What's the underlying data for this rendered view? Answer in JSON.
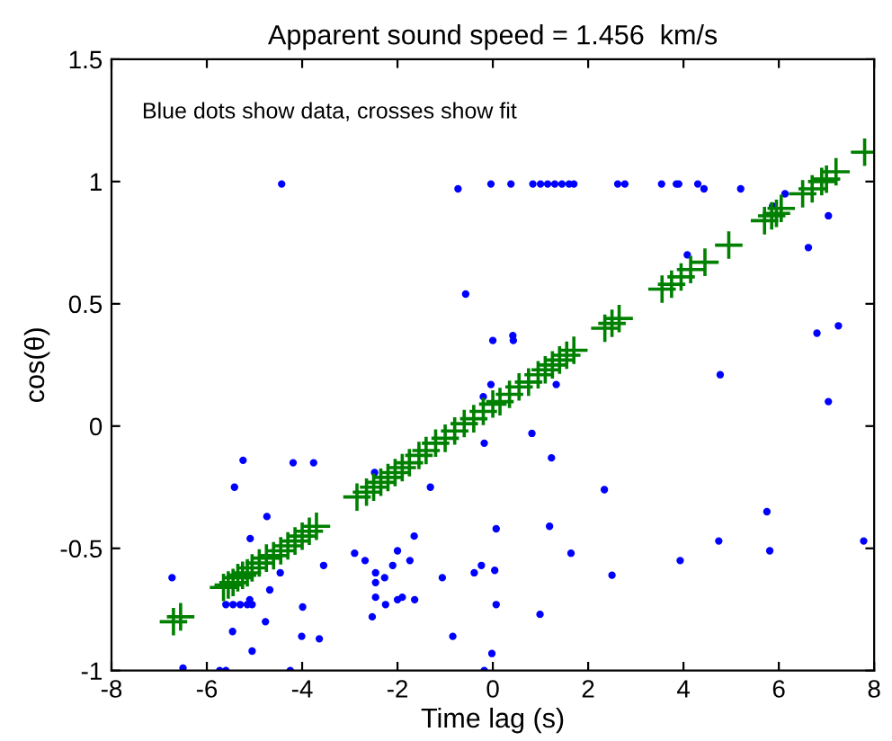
{
  "chart_data": {
    "type": "scatter",
    "title": "Apparent sound speed = 1.456  km/s",
    "xlabel": "Time lag (s)",
    "ylabel": "cos(θ)",
    "annotations": [
      "Blue dots show data, crosses show fit"
    ],
    "xlim": [
      -8,
      8
    ],
    "ylim": [
      -1,
      1.5
    ],
    "xticks": [
      -8,
      -6,
      -4,
      -2,
      0,
      2,
      4,
      6,
      8
    ],
    "yticks": [
      -1,
      -0.5,
      0,
      0.5,
      1,
      1.5
    ],
    "grid": false,
    "series": [
      {
        "color": "#0000ff",
        "marker": "circle",
        "x": [
          -4.43,
          -0.73,
          -0.04,
          -0.57,
          0.0,
          0.38,
          0.84,
          1.0,
          1.15,
          1.3,
          1.45,
          1.6,
          1.7,
          2.62,
          2.77,
          3.54,
          3.85,
          3.9,
          4.3,
          4.43,
          5.2,
          5.87,
          6.13,
          7.04,
          6.62,
          4.08,
          0.42,
          0.43,
          6.8,
          7.25,
          -0.04,
          -0.2,
          -0.18,
          -5.24,
          -4.19,
          -3.76,
          -5.42,
          -1.31,
          -2.48,
          -4.74,
          -5.09,
          -1.65,
          0.07,
          -2.9,
          -2.68,
          -2.0,
          -1.74,
          -3.55,
          -2.1,
          -4.46,
          -2.46,
          -2.27,
          -2.46,
          -6.73,
          -0.39,
          -0.24,
          0.04,
          -1.06,
          -4.68,
          -2.46,
          -2.25,
          -2.0,
          -1.9,
          -1.64,
          -5.6,
          -5.45,
          -5.3,
          -5.15,
          -5.05,
          -5.1,
          -3.99,
          -2.53,
          -4.77,
          0.07,
          -5.46,
          -4.01,
          -3.64,
          -0.84,
          -5.05,
          -0.02,
          -6.5,
          -5.73,
          -5.6,
          -4.25,
          -0.18,
          4.77,
          1.33,
          7.04,
          0.82,
          1.23,
          2.34,
          1.19,
          5.75,
          4.74,
          7.78,
          1.64,
          5.81,
          3.93,
          2.5,
          0.99
        ],
        "values": [
          0.99,
          0.97,
          0.99,
          0.54,
          0.35,
          0.99,
          0.99,
          0.99,
          0.99,
          0.99,
          0.99,
          0.99,
          0.99,
          0.99,
          0.99,
          0.99,
          0.99,
          0.99,
          0.99,
          0.97,
          0.97,
          0.9,
          0.95,
          0.86,
          0.73,
          0.7,
          0.37,
          0.35,
          0.38,
          0.41,
          0.17,
          0.12,
          -0.07,
          -0.14,
          -0.15,
          -0.15,
          -0.25,
          -0.25,
          -0.19,
          -0.37,
          -0.46,
          -0.45,
          -0.42,
          -0.52,
          -0.55,
          -0.51,
          -0.55,
          -0.57,
          -0.57,
          -0.6,
          -0.6,
          -0.62,
          -0.64,
          -0.62,
          -0.6,
          -0.57,
          -0.59,
          -0.62,
          -0.67,
          -0.7,
          -0.73,
          -0.71,
          -0.7,
          -0.71,
          -0.73,
          -0.73,
          -0.73,
          -0.73,
          -0.73,
          -0.71,
          -0.74,
          -0.78,
          -0.8,
          -0.73,
          -0.84,
          -0.86,
          -0.87,
          -0.86,
          -0.92,
          -0.93,
          -0.99,
          -1.0,
          -1.0,
          -1.0,
          -1.0,
          0.21,
          0.17,
          0.1,
          -0.03,
          -0.13,
          -0.26,
          -0.41,
          -0.35,
          -0.47,
          -0.47,
          -0.52,
          -0.51,
          -0.55,
          -0.61,
          -0.77
        ]
      },
      {
        "color": "#008000",
        "marker": "cross",
        "x": [
          -6.7,
          -6.55,
          -5.65,
          -5.55,
          -5.45,
          -5.35,
          -5.25,
          -5.15,
          -5.05,
          -4.9,
          -4.75,
          -4.6,
          -4.45,
          -4.3,
          -4.15,
          -4.0,
          -3.85,
          -3.7,
          -2.85,
          -2.65,
          -2.5,
          -2.35,
          -2.2,
          -2.05,
          -1.9,
          -1.75,
          -1.55,
          -1.4,
          -1.2,
          -1.0,
          -0.8,
          -0.6,
          -0.4,
          -0.2,
          0.0,
          0.15,
          0.35,
          0.55,
          0.75,
          0.95,
          1.1,
          1.25,
          1.4,
          1.55,
          1.7,
          2.35,
          2.5,
          2.65,
          3.55,
          3.75,
          3.95,
          4.15,
          4.45,
          4.95,
          5.7,
          5.85,
          5.95,
          6.05,
          6.5,
          6.7,
          6.9,
          7.0,
          7.2,
          7.8
        ],
        "values": [
          -0.8,
          -0.78,
          -0.66,
          -0.65,
          -0.64,
          -0.62,
          -0.61,
          -0.6,
          -0.58,
          -0.56,
          -0.54,
          -0.53,
          -0.51,
          -0.49,
          -0.47,
          -0.45,
          -0.43,
          -0.41,
          -0.29,
          -0.27,
          -0.25,
          -0.23,
          -0.21,
          -0.19,
          -0.17,
          -0.15,
          -0.12,
          -0.1,
          -0.07,
          -0.05,
          -0.02,
          0.01,
          0.03,
          0.06,
          0.09,
          0.1,
          0.13,
          0.16,
          0.18,
          0.21,
          0.23,
          0.25,
          0.27,
          0.29,
          0.31,
          0.4,
          0.42,
          0.44,
          0.56,
          0.58,
          0.61,
          0.64,
          0.67,
          0.74,
          0.84,
          0.86,
          0.87,
          0.89,
          0.95,
          0.97,
          1.0,
          1.01,
          1.04,
          1.12
        ]
      }
    ]
  }
}
